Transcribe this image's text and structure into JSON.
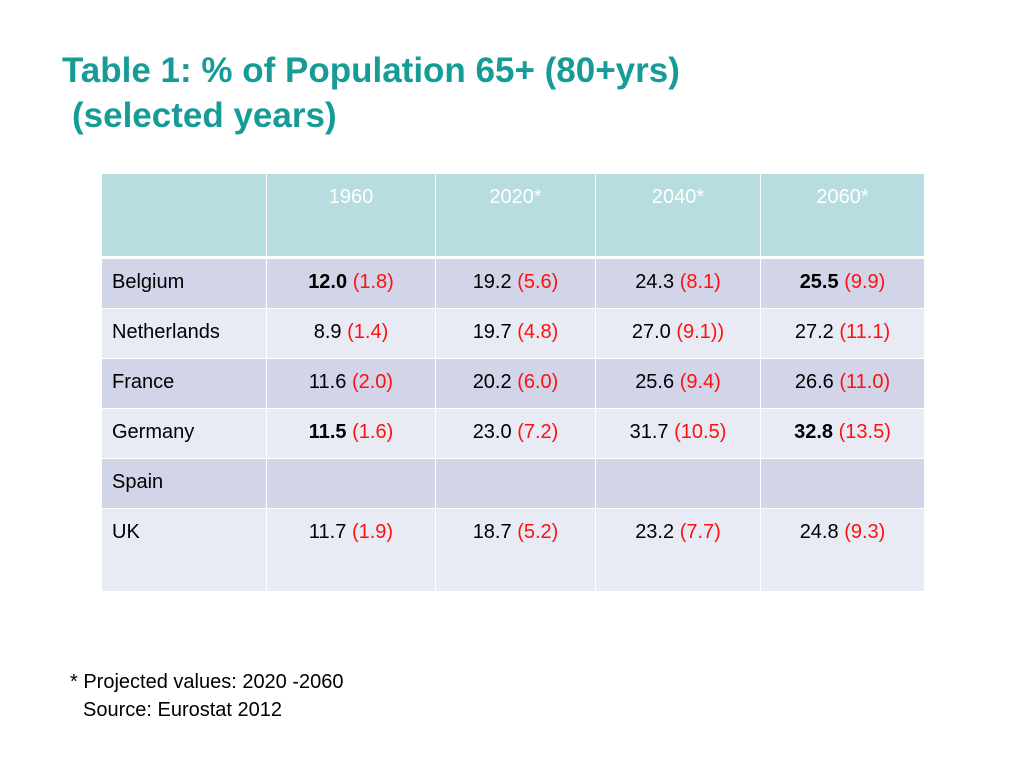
{
  "title": {
    "line1": "Table 1: % of Population 65+ (80+yrs)",
    "line2": "(selected years)"
  },
  "table": {
    "headers": [
      "",
      "1960",
      "2020*",
      "2040*",
      "2060*"
    ],
    "rows": [
      {
        "country": "Belgium",
        "cells": [
          {
            "v65": "12.0",
            "v80": "(1.8)",
            "bold": true
          },
          {
            "v65": "19.2",
            "v80": "(5.6)",
            "bold": false
          },
          {
            "v65": "24.3",
            "v80": "(8.1)",
            "bold": false
          },
          {
            "v65": "25.5",
            "v80": "(9.9)",
            "bold": true
          }
        ]
      },
      {
        "country": "Netherlands",
        "cells": [
          {
            "v65": "8.9",
            "v80": "(1.4)",
            "bold": false
          },
          {
            "v65": "19.7",
            "v80": "(4.8)",
            "bold": false
          },
          {
            "v65": "27.0",
            "v80": "(9.1))",
            "bold": false
          },
          {
            "v65": "27.2",
            "v80": "(11.1)",
            "bold": false
          }
        ]
      },
      {
        "country": "France",
        "cells": [
          {
            "v65": "11.6",
            "v80": "(2.0)",
            "bold": false
          },
          {
            "v65": "20.2",
            "v80": "(6.0)",
            "bold": false
          },
          {
            "v65": "25.6",
            "v80": "(9.4)",
            "bold": false
          },
          {
            "v65": "26.6",
            "v80": "(11.0)",
            "bold": false
          }
        ]
      },
      {
        "country": "Germany",
        "cells": [
          {
            "v65": "11.5",
            "v80": "(1.6)",
            "bold": true
          },
          {
            "v65": "23.0",
            "v80": "(7.2)",
            "bold": false
          },
          {
            "v65": "31.7",
            "v80": "(10.5)",
            "bold": false
          },
          {
            "v65": "32.8",
            "v80": "(13.5)",
            "bold": true
          }
        ]
      },
      {
        "country": "Spain",
        "cells": [
          {
            "v65": "",
            "v80": "",
            "bold": false
          },
          {
            "v65": "",
            "v80": "",
            "bold": false
          },
          {
            "v65": "",
            "v80": "",
            "bold": false
          },
          {
            "v65": "",
            "v80": "",
            "bold": false
          }
        ]
      },
      {
        "country": "UK",
        "cells": [
          {
            "v65": "11.7",
            "v80": "(1.9)",
            "bold": false
          },
          {
            "v65": "18.7",
            "v80": "(5.2)",
            "bold": false
          },
          {
            "v65": "23.2",
            "v80": "(7.7)",
            "bold": false
          },
          {
            "v65": "24.8",
            "v80": "(9.3)",
            "bold": false
          }
        ]
      }
    ]
  },
  "footnote": {
    "projected": "* Projected values: 2020 -2060",
    "source": "Source:  Eurostat 2012"
  },
  "colors": {
    "title": "#169b96",
    "header_bg": "#b7dde0",
    "row_dark": "#d1d5e7",
    "row_light": "#e9ebf4",
    "value_80plus": "#ff1010"
  }
}
